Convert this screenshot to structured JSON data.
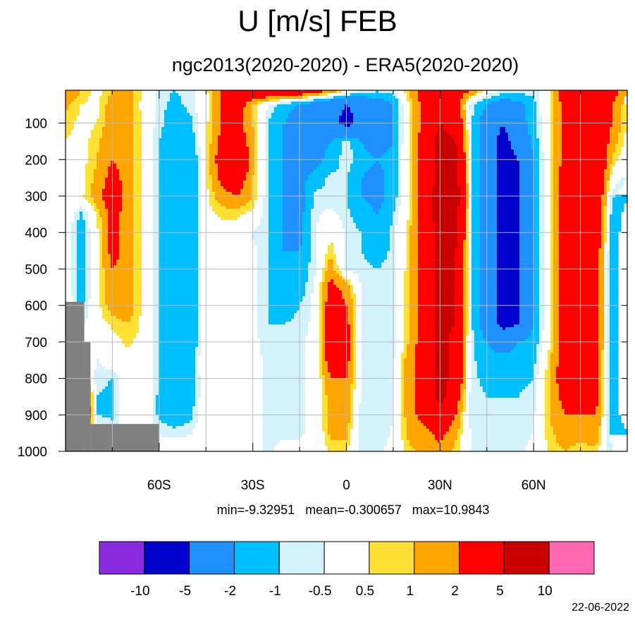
{
  "title": "U [m/s] FEB",
  "subtitle": "ngc2013(2020-2020) - ERA5(2020-2020)",
  "stats_text": "min=-9.32951   mean=-0.300657   max=10.9843",
  "date": "22-06-2022",
  "chart_data": {
    "type": "heatmap",
    "x": [
      -90,
      -85,
      -80,
      -75,
      -70,
      -65,
      -60,
      -55,
      -50,
      -45,
      -40,
      -35,
      -30,
      -25,
      -20,
      -15,
      -10,
      -5,
      0,
      5,
      10,
      15,
      20,
      25,
      30,
      35,
      40,
      45,
      50,
      55,
      60,
      65,
      70,
      75,
      80,
      85,
      90
    ],
    "y": [
      10,
      50,
      100,
      150,
      200,
      250,
      300,
      350,
      400,
      450,
      500,
      550,
      600,
      650,
      700,
      750,
      800,
      850,
      900,
      950,
      1000
    ],
    "xlim": [
      -90,
      90
    ],
    "ylim": [
      1000,
      10
    ],
    "x_ticks": [
      -60,
      -30,
      0,
      30,
      60
    ],
    "x_tick_labels": [
      "60S",
      "30S",
      "0",
      "30N",
      "60N"
    ],
    "y_ticks": [
      100,
      200,
      300,
      400,
      500,
      600,
      700,
      800,
      900,
      1000
    ],
    "y_tick_labels": [
      "100",
      "200",
      "300",
      "400",
      "500",
      "600",
      "700",
      "800",
      "900",
      "1000"
    ],
    "grid": true,
    "missing_color": "#808080",
    "levels": [
      -10,
      -5,
      -2,
      -1,
      -0.5,
      0.5,
      1,
      2,
      5,
      10
    ],
    "level_labels": [
      "-10",
      "-5",
      "-2",
      "-1",
      "-0.5",
      "0.5",
      "1",
      "2",
      "5",
      "10"
    ],
    "colors": [
      "#8a2be2",
      "#0000cd",
      "#1e90ff",
      "#00bfff",
      "#d4f2fc",
      "#ffffff",
      "#ffe135",
      "#ffa500",
      "#ff0000",
      "#c80000",
      "#ff69b4"
    ],
    "colorbar_position": "bottom",
    "values": [
      [
        2,
        1,
        0.3,
        1,
        1.5,
        0.3,
        -0.8,
        -1,
        -0.8,
        0.3,
        2,
        3,
        4,
        4,
        4,
        4,
        3,
        2,
        0.8,
        -0.3,
        -0.8,
        -0.5,
        1,
        3,
        5,
        3,
        2,
        0.3,
        -0.5,
        -0.5,
        -0.8,
        0.3,
        3,
        5,
        5,
        3,
        1
      ],
      [
        1.2,
        0.5,
        0.2,
        1.5,
        1.5,
        0.2,
        -0.8,
        -1.2,
        -0.8,
        0.2,
        2,
        3,
        1,
        -0.5,
        -1.5,
        -2,
        -3,
        -4,
        -5,
        -4,
        -3,
        -2,
        0.5,
        2.5,
        4,
        3,
        -0.8,
        -2,
        -3,
        -2.5,
        -1.2,
        0.5,
        2.5,
        4,
        4,
        2,
        0.5
      ],
      [
        0.8,
        0.3,
        0.5,
        1.5,
        1.5,
        0.3,
        -0.8,
        -1.5,
        -1.2,
        0.3,
        2,
        2.5,
        1,
        -1,
        -2,
        -3,
        -3,
        -4,
        -6,
        -4,
        -3,
        -2,
        0.5,
        2.5,
        5,
        4,
        -0.8,
        -3,
        -5,
        -3,
        -1.2,
        0.3,
        2.5,
        5,
        4,
        2,
        0.3
      ],
      [
        0.5,
        0.2,
        0.8,
        1.8,
        1.5,
        0.3,
        -1,
        -1.8,
        -1.5,
        0.3,
        2.5,
        3,
        1.2,
        -1,
        -2,
        -3,
        -2.5,
        -2,
        -0.6,
        -2,
        -3,
        -2,
        0.5,
        3,
        6,
        5,
        -0.8,
        -3,
        -6,
        -4,
        -1.5,
        0.3,
        2.5,
        5,
        4,
        1.5,
        0.3
      ],
      [
        0.3,
        0.2,
        1,
        2,
        1.5,
        0.3,
        -1,
        -2,
        -2,
        0.3,
        3,
        5,
        1.2,
        -1,
        -2,
        -3,
        -2.5,
        -1.5,
        -0.6,
        -1.5,
        -2,
        -1.5,
        0.5,
        3,
        6,
        6,
        -0.8,
        -3,
        -6,
        -5,
        -2,
        0.3,
        2.5,
        5,
        4,
        1,
        -0.3
      ],
      [
        0.2,
        0.2,
        1.2,
        2.5,
        1.5,
        0.3,
        -1,
        -2,
        -2,
        0.3,
        2.5,
        3,
        1,
        -1,
        -2,
        -2.5,
        -1.5,
        -0.8,
        -1,
        -2,
        -2.5,
        -1.5,
        0.5,
        3,
        6,
        6,
        -0.8,
        -3,
        -6,
        -5,
        -2,
        0.3,
        3,
        5,
        4,
        0.3,
        -1
      ],
      [
        0.2,
        0.3,
        1.5,
        3,
        1.5,
        0.3,
        -1,
        -2,
        -2,
        0.3,
        1.5,
        2,
        1,
        -1,
        -2,
        -2.5,
        -0.8,
        -0.8,
        -1,
        -2,
        -2.5,
        -1.5,
        0.5,
        3,
        7,
        7,
        -0.8,
        -3,
        -6,
        -5,
        -2,
        0.3,
        3,
        5,
        4,
        -0.8,
        -2
      ],
      [
        0.2,
        -1.2,
        0.5,
        2.5,
        1.5,
        0.3,
        -1,
        -2,
        -2,
        0.3,
        0.6,
        0.6,
        0.3,
        -1,
        -2,
        -2.5,
        -0.6,
        -0.3,
        -0.8,
        -1.5,
        -2,
        -1,
        0.5,
        3,
        7,
        6,
        -0.8,
        -3,
        -6,
        -5,
        -2,
        0.3,
        3,
        5,
        4,
        -1.2,
        -2.5
      ],
      [
        0.2,
        -1.5,
        0.3,
        2.5,
        1.5,
        0.3,
        -1,
        -2,
        -2,
        0.3,
        0.3,
        0.3,
        -0.6,
        -1,
        -2,
        -2.5,
        -0.6,
        0.3,
        -0.6,
        -1,
        -1.5,
        -0.8,
        0.8,
        3,
        6,
        6,
        -0.8,
        -3,
        -6,
        -5,
        -2,
        0.3,
        3,
        5,
        4,
        -1.5,
        -2.5
      ],
      [
        0.2,
        -1.5,
        0.3,
        2.5,
        1.5,
        0.3,
        -1,
        -2,
        -2,
        0.3,
        0.3,
        0.2,
        -0.3,
        -1,
        -2,
        -2,
        -0.6,
        0.8,
        -0.6,
        -1,
        -1.5,
        -0.8,
        0.8,
        3,
        6,
        5,
        -0.8,
        -3,
        -6,
        -5,
        -2,
        0.3,
        3,
        5,
        3,
        -1.5,
        -2.5
      ],
      [
        0.2,
        -1.5,
        0.2,
        2,
        1.5,
        0.3,
        -1,
        -2,
        -2,
        0.3,
        0.3,
        0.2,
        -0.3,
        -1,
        -2,
        -1.5,
        -0.6,
        1.5,
        -0.6,
        -0.8,
        -1,
        -0.6,
        0.8,
        3,
        6,
        5,
        -0.8,
        -3,
        -6,
        -5,
        -2,
        0.3,
        3,
        5,
        3,
        -1.5,
        -2.5
      ],
      [
        0.2,
        -1.5,
        0.2,
        2,
        1.5,
        0.3,
        -1,
        -2,
        -2,
        0.3,
        0.3,
        0.2,
        -0.3,
        -1,
        -2,
        -1.5,
        -0.3,
        2.5,
        1.5,
        -0.6,
        -1,
        -0.6,
        1,
        3,
        6,
        5,
        -0.8,
        -3,
        -6,
        -5,
        -2,
        0.3,
        3,
        5,
        3,
        -1.5,
        -2.5
      ],
      [
        0.2,
        -1.2,
        0.2,
        1.5,
        1.5,
        0.3,
        -1,
        -2,
        -2,
        0.3,
        0.3,
        0.2,
        -0.3,
        -1,
        -1.5,
        -1,
        -0.3,
        3,
        2,
        -0.6,
        -1,
        -0.6,
        1,
        3,
        6,
        5,
        -0.8,
        -3,
        -6,
        -5,
        -2,
        0.3,
        3,
        5,
        3,
        -1.5,
        -2.5
      ],
      [
        0.6,
        -0.8,
        0.2,
        0.6,
        1,
        0.3,
        -1,
        -2,
        -2,
        0.3,
        0.3,
        0.2,
        -0.3,
        -1,
        -1,
        -0.8,
        -0.3,
        3,
        2.5,
        -0.6,
        -1,
        -0.6,
        1,
        3,
        6,
        5,
        -0.8,
        -3,
        -6,
        -5,
        -2,
        0.3,
        3,
        5,
        3,
        -1.5,
        -2.5
      ],
      [
        1.5,
        0.8,
        -0.3,
        0.3,
        0.6,
        0.3,
        -1,
        -2,
        -2,
        0.3,
        0.2,
        0.2,
        -0.3,
        -0.8,
        -0.6,
        -0.6,
        -0.3,
        3,
        2.5,
        -0.6,
        -1,
        -0.6,
        1,
        3,
        6,
        4,
        -0.8,
        -2,
        -3,
        -2,
        -1.5,
        0.3,
        3,
        5,
        3,
        -1.5,
        -2.5
      ],
      [
        1.8,
        1,
        -0.6,
        0.2,
        0.3,
        0.3,
        -1,
        -2,
        -1.5,
        0.3,
        0.3,
        0.2,
        -0.3,
        -0.6,
        -0.6,
        -0.6,
        -0.3,
        3,
        2.5,
        -0.6,
        -1,
        -0.6,
        1.5,
        3,
        6,
        4,
        -0.8,
        -1.5,
        -1.5,
        -1.5,
        -1.2,
        0.8,
        3,
        5,
        2.5,
        -1.5,
        -2.5
      ],
      [
        2,
        1.5,
        -0.8,
        -1,
        0.2,
        0.3,
        -1,
        -2,
        -1.5,
        0.2,
        0.3,
        0.2,
        -0.3,
        -0.6,
        -0.6,
        -0.6,
        -0.3,
        2,
        2,
        -0.6,
        -1,
        -0.6,
        1.5,
        3,
        6,
        4,
        -0.8,
        -1.2,
        -1.2,
        -1.2,
        -1,
        1,
        3,
        4,
        2.5,
        -1.5,
        -2.5
      ],
      [
        2,
        5,
        -1,
        -1.2,
        0.2,
        0.3,
        -1.2,
        -2,
        -1.5,
        0.2,
        0.2,
        0.2,
        -0.3,
        -0.6,
        -0.6,
        -0.6,
        -0.3,
        1.5,
        1.5,
        -0.6,
        -1,
        -0.6,
        1.5,
        3,
        6,
        3,
        -0.8,
        -1,
        -1,
        -1,
        -0.8,
        1,
        2.5,
        3,
        2.5,
        -1.5,
        -2.5
      ],
      [
        2,
        6,
        -1,
        -1.2,
        0.2,
        0.3,
        -1.2,
        -1.5,
        -1.2,
        0.2,
        0.2,
        0.2,
        -0.3,
        -0.6,
        -0.6,
        -0.6,
        -0.3,
        1.5,
        1.5,
        -1,
        -1,
        -0.6,
        1.5,
        2.5,
        4,
        2,
        -0.8,
        -1,
        -1,
        -1,
        -0.6,
        1,
        2,
        2,
        2,
        -1.5,
        -2.5
      ],
      [
        0.8,
        1.5,
        0.3,
        -0.6,
        0.2,
        0.3,
        -0.6,
        -0.8,
        -0.6,
        0.2,
        0.2,
        0.2,
        -0.3,
        -0.6,
        -0.6,
        -0.6,
        -0.3,
        1.2,
        1.2,
        -1,
        -1,
        -0.3,
        1.2,
        1.5,
        2.5,
        1.2,
        -0.6,
        -0.8,
        -1,
        -0.8,
        -0.5,
        0.8,
        1.5,
        1.5,
        1.5,
        -1.2,
        -2
      ],
      [
        0.3,
        0.6,
        0.3,
        0.3,
        0.2,
        0.3,
        0.3,
        0.3,
        0.3,
        0.2,
        0.2,
        0.2,
        -0.3,
        -0.6,
        -0.3,
        -0.3,
        -0.3,
        0.6,
        0.6,
        -0.8,
        -0.6,
        -0.3,
        0.8,
        1.2,
        1.5,
        0.8,
        -0.6,
        -0.8,
        -0.8,
        -0.6,
        -0.3,
        0.6,
        1,
        0.6,
        0.8,
        -1,
        -1.5
      ]
    ],
    "mask": [
      [
        -90,
        -84,
        590,
        1000
      ],
      [
        -84,
        -82,
        700,
        1000
      ],
      [
        -82,
        -60,
        925,
        1000
      ]
    ]
  }
}
